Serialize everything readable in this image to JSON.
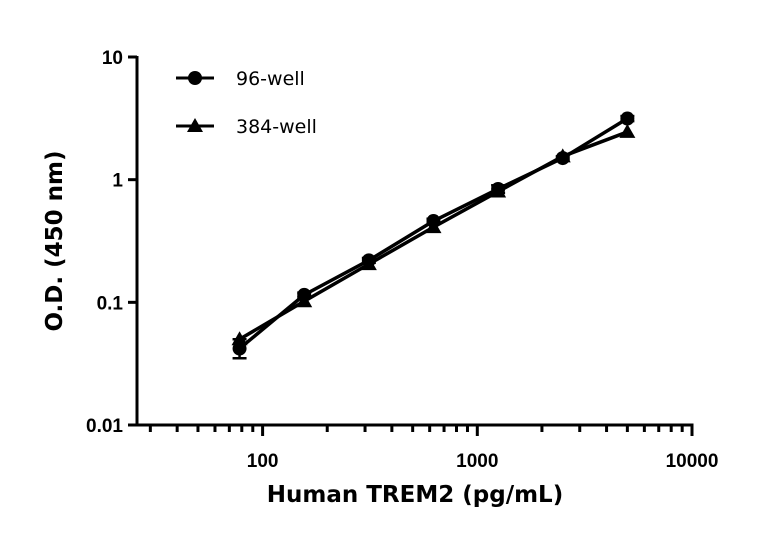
{
  "chart_data": {
    "type": "line",
    "title": "",
    "xlabel": "Human TREM2 (pg/mL)",
    "ylabel": "O.D. (450 nm)",
    "xscale": "log",
    "yscale": "log",
    "xlim": [
      26,
      10000
    ],
    "ylim": [
      0.01,
      10
    ],
    "x_ticks": [
      "100",
      "1000",
      "10000"
    ],
    "y_ticks": [
      "0.01",
      "0.1",
      "1",
      "10"
    ],
    "grid": false,
    "legend_position": "top-left",
    "x": [
      78.1,
      156.25,
      312.5,
      625,
      1250,
      2500,
      5000
    ],
    "series": [
      {
        "name": "96-well",
        "marker": "circle",
        "color": "#000000",
        "values": [
          0.042,
          0.115,
          0.22,
          0.46,
          0.84,
          1.5,
          3.15
        ],
        "error_low": [
          0.035,
          0.11,
          0.21,
          0.44,
          0.78,
          1.45,
          3.0
        ],
        "error_high": [
          0.05,
          0.12,
          0.23,
          0.48,
          0.9,
          1.55,
          3.3
        ]
      },
      {
        "name": "384-well",
        "marker": "triangle",
        "color": "#000000",
        "values": [
          0.05,
          0.102,
          0.205,
          0.41,
          0.8,
          1.55,
          2.45
        ]
      }
    ]
  }
}
